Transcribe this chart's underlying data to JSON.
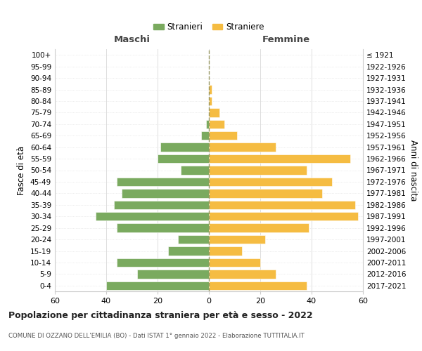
{
  "age_groups": [
    "0-4",
    "5-9",
    "10-14",
    "15-19",
    "20-24",
    "25-29",
    "30-34",
    "35-39",
    "40-44",
    "45-49",
    "50-54",
    "55-59",
    "60-64",
    "65-69",
    "70-74",
    "75-79",
    "80-84",
    "85-89",
    "90-94",
    "95-99",
    "100+"
  ],
  "birth_years": [
    "2017-2021",
    "2012-2016",
    "2007-2011",
    "2002-2006",
    "1997-2001",
    "1992-1996",
    "1987-1991",
    "1982-1986",
    "1977-1981",
    "1972-1976",
    "1967-1971",
    "1962-1966",
    "1957-1961",
    "1952-1956",
    "1947-1951",
    "1942-1946",
    "1937-1941",
    "1932-1936",
    "1927-1931",
    "1922-1926",
    "≤ 1921"
  ],
  "maschi": [
    40,
    28,
    36,
    16,
    12,
    36,
    44,
    37,
    34,
    36,
    11,
    20,
    19,
    3,
    1,
    0,
    0,
    0,
    0,
    0,
    0
  ],
  "femmine": [
    38,
    26,
    20,
    13,
    22,
    39,
    58,
    57,
    44,
    48,
    38,
    55,
    26,
    11,
    6,
    4,
    1,
    1,
    0,
    0,
    0
  ],
  "color_maschi": "#7aaa5f",
  "color_femmine": "#f5bc42",
  "title": "Popolazione per cittadinanza straniera per età e sesso - 2022",
  "subtitle": "COMUNE DI OZZANO DELL'EMILIA (BO) - Dati ISTAT 1° gennaio 2022 - Elaborazione TUTTITALIA.IT",
  "legend_maschi": "Stranieri",
  "legend_femmine": "Straniere",
  "xlabel_left": "Maschi",
  "xlabel_right": "Femmine",
  "ylabel_left": "Fasce di età",
  "ylabel_right": "Anni di nascita",
  "xlim": 60,
  "bg_color": "#ffffff",
  "grid_color": "#dddddd"
}
